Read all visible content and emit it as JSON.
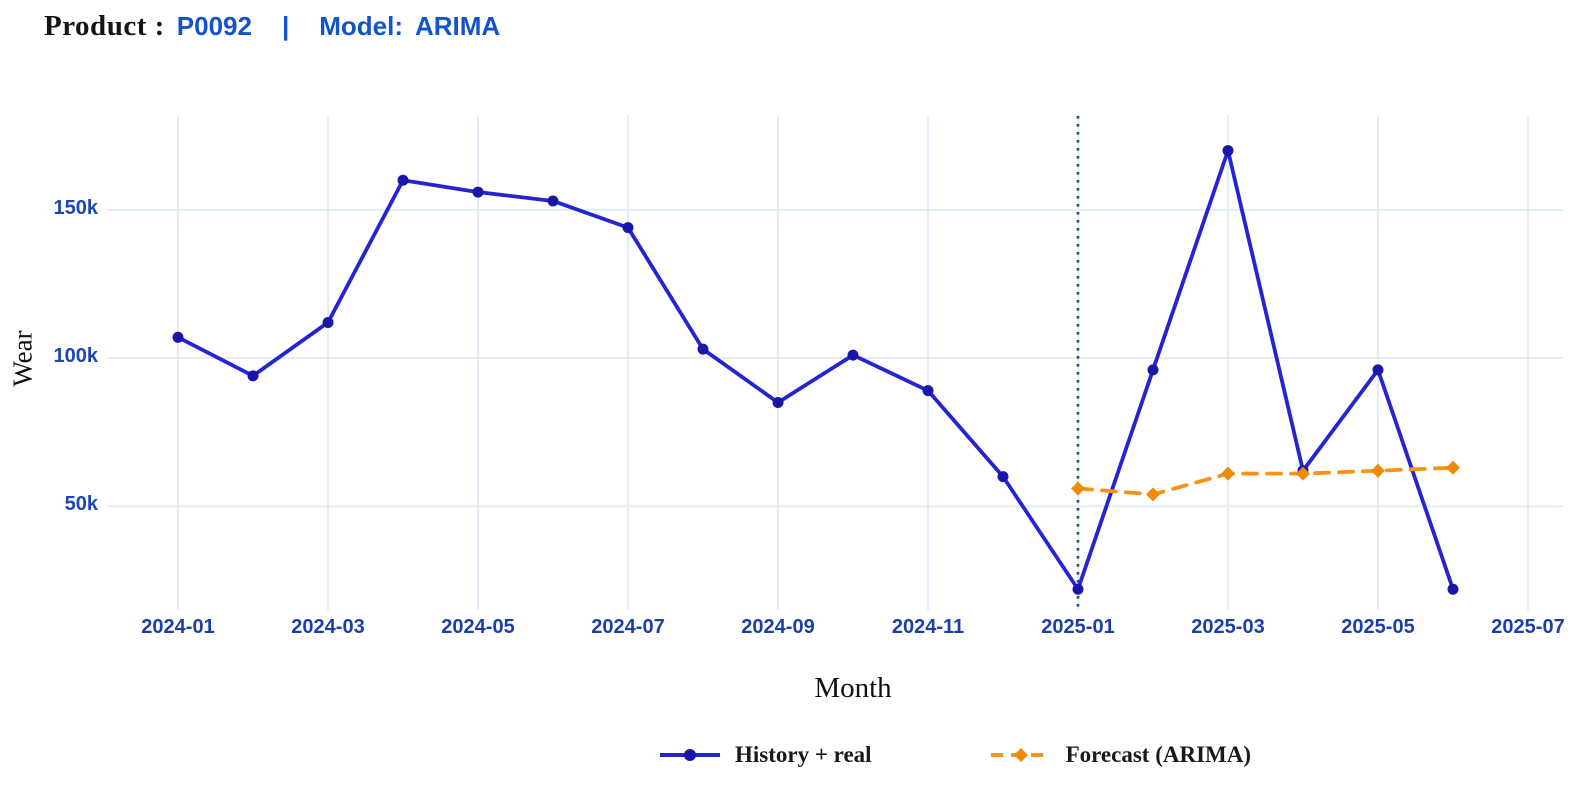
{
  "header": {
    "product_label": "Product :",
    "product_value": "P0092",
    "divider": "|",
    "model_label": "Model:",
    "model_value": "ARIMA",
    "accent_color": "#1253cf"
  },
  "chart_data": {
    "type": "line",
    "title": "Product : P0092 | Model: ARIMA",
    "xlabel": "Month",
    "ylabel": "Wear",
    "x_axis_ticks": [
      "2024-01",
      "2024-03",
      "2024-05",
      "2024-07",
      "2024-09",
      "2024-11",
      "2025-01",
      "2025-03",
      "2025-05",
      "2025-07"
    ],
    "y_axis_ticks": [
      {
        "label": "50k",
        "value": 50000
      },
      {
        "label": "100k",
        "value": 100000
      },
      {
        "label": "150k",
        "value": 150000
      }
    ],
    "ylim": [
      15000,
      182000
    ],
    "grid": true,
    "legend_position": "bottom",
    "series": [
      {
        "name": "History + real",
        "color": "#2424d2",
        "marker_color": "#1a17a8",
        "marker": "circle",
        "line_style": "solid",
        "x": [
          "2024-01",
          "2024-02",
          "2024-03",
          "2024-04",
          "2024-05",
          "2024-06",
          "2024-07",
          "2024-08",
          "2024-09",
          "2024-10",
          "2024-11",
          "2024-12",
          "2025-01",
          "2025-02",
          "2025-03",
          "2025-04",
          "2025-05",
          "2025-06"
        ],
        "values": [
          107000,
          94000,
          112000,
          160000,
          156000,
          153000,
          144000,
          103000,
          85000,
          101000,
          89000,
          60000,
          22000,
          96000,
          170000,
          62000,
          96000,
          22000
        ]
      },
      {
        "name": "Forecast (ARIMA)",
        "color": "#fb9216",
        "marker_color": "#ef8b07",
        "marker": "diamond",
        "line_style": "dashed",
        "x": [
          "2025-01",
          "2025-02",
          "2025-03",
          "2025-04",
          "2025-05",
          "2025-06"
        ],
        "values": [
          56000,
          54000,
          61000,
          61000,
          62000,
          63000
        ]
      }
    ],
    "vline": {
      "x": "2025-01",
      "style": "dotted",
      "color": "#2a4a66"
    },
    "gridline_color": "#e4eef9"
  }
}
